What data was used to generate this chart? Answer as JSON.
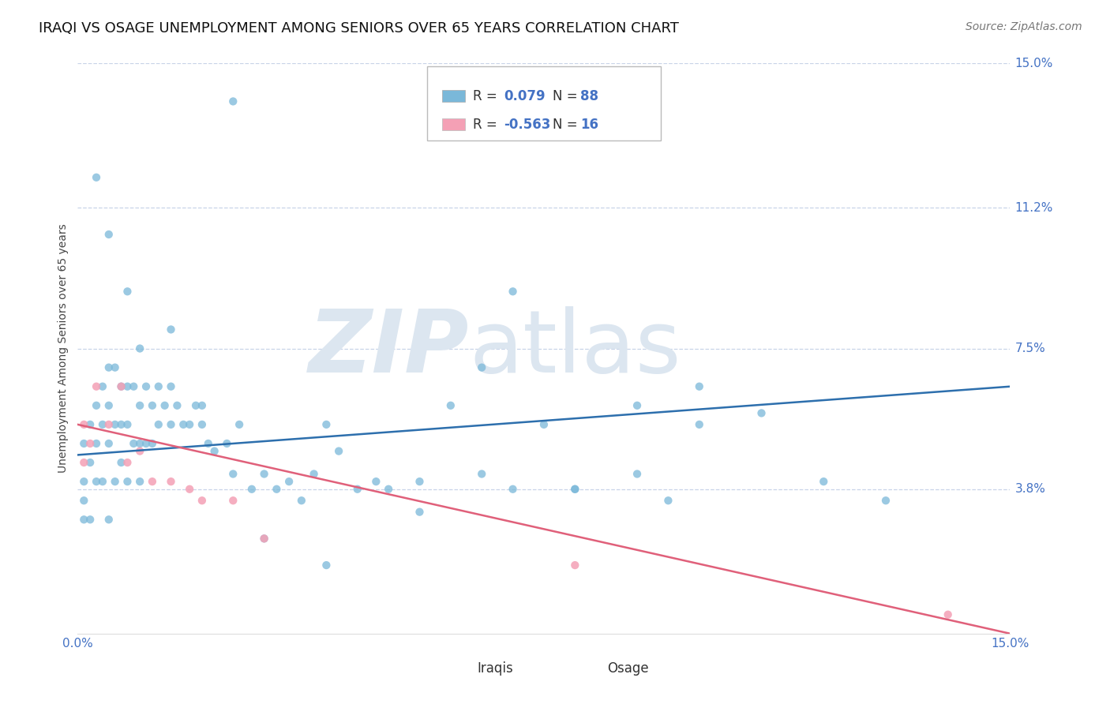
{
  "title": "IRAQI VS OSAGE UNEMPLOYMENT AMONG SENIORS OVER 65 YEARS CORRELATION CHART",
  "source": "Source: ZipAtlas.com",
  "ylabel": "Unemployment Among Seniors over 65 years",
  "x_min": 0.0,
  "x_max": 0.15,
  "y_min": 0.0,
  "y_max": 0.15,
  "ytick_vals": [
    0.038,
    0.075,
    0.112,
    0.15
  ],
  "ytick_labels": [
    "3.8%",
    "7.5%",
    "11.2%",
    "15.0%"
  ],
  "xtick_vals": [
    0.0,
    0.15
  ],
  "xtick_labels": [
    "0.0%",
    "15.0%"
  ],
  "iraqis_color": "#7ab8d9",
  "osage_color": "#f4a0b5",
  "trend_iraqi_color": "#2d6fad",
  "trend_osage_color": "#e0607a",
  "background_color": "#ffffff",
  "watermark_color": "#dce6f0",
  "tick_label_color": "#4472c4",
  "grid_color": "#c8d4e8",
  "R_val_color": "#4472c4",
  "N_val_color": "#4472c4",
  "iraqi_x": [
    0.001,
    0.001,
    0.001,
    0.001,
    0.002,
    0.002,
    0.002,
    0.003,
    0.003,
    0.003,
    0.004,
    0.004,
    0.004,
    0.005,
    0.005,
    0.005,
    0.005,
    0.006,
    0.006,
    0.006,
    0.007,
    0.007,
    0.007,
    0.008,
    0.008,
    0.008,
    0.009,
    0.009,
    0.01,
    0.01,
    0.01,
    0.011,
    0.011,
    0.012,
    0.012,
    0.013,
    0.013,
    0.014,
    0.015,
    0.015,
    0.016,
    0.017,
    0.018,
    0.019,
    0.02,
    0.021,
    0.022,
    0.024,
    0.025,
    0.026,
    0.028,
    0.03,
    0.032,
    0.034,
    0.036,
    0.038,
    0.04,
    0.042,
    0.045,
    0.048,
    0.05,
    0.055,
    0.06,
    0.065,
    0.07,
    0.075,
    0.08,
    0.09,
    0.095,
    0.1,
    0.11,
    0.12,
    0.13,
    0.003,
    0.005,
    0.008,
    0.01,
    0.015,
    0.02,
    0.025,
    0.03,
    0.04,
    0.055,
    0.065,
    0.07,
    0.08,
    0.09,
    0.1
  ],
  "iraqi_y": [
    0.05,
    0.04,
    0.035,
    0.03,
    0.055,
    0.045,
    0.03,
    0.06,
    0.05,
    0.04,
    0.065,
    0.055,
    0.04,
    0.07,
    0.06,
    0.05,
    0.03,
    0.07,
    0.055,
    0.04,
    0.065,
    0.055,
    0.045,
    0.065,
    0.055,
    0.04,
    0.065,
    0.05,
    0.06,
    0.05,
    0.04,
    0.065,
    0.05,
    0.06,
    0.05,
    0.065,
    0.055,
    0.06,
    0.065,
    0.055,
    0.06,
    0.055,
    0.055,
    0.06,
    0.055,
    0.05,
    0.048,
    0.05,
    0.14,
    0.055,
    0.038,
    0.042,
    0.038,
    0.04,
    0.035,
    0.042,
    0.055,
    0.048,
    0.038,
    0.04,
    0.038,
    0.04,
    0.06,
    0.042,
    0.038,
    0.055,
    0.038,
    0.06,
    0.035,
    0.065,
    0.058,
    0.04,
    0.035,
    0.12,
    0.105,
    0.09,
    0.075,
    0.08,
    0.06,
    0.042,
    0.025,
    0.018,
    0.032,
    0.07,
    0.09,
    0.038,
    0.042,
    0.055
  ],
  "osage_x": [
    0.001,
    0.001,
    0.002,
    0.003,
    0.005,
    0.007,
    0.008,
    0.01,
    0.012,
    0.015,
    0.018,
    0.02,
    0.025,
    0.03,
    0.08,
    0.14
  ],
  "osage_y": [
    0.055,
    0.045,
    0.05,
    0.065,
    0.055,
    0.065,
    0.045,
    0.048,
    0.04,
    0.04,
    0.038,
    0.035,
    0.035,
    0.025,
    0.018,
    0.005
  ],
  "iraqi_trend_x0": 0.0,
  "iraqi_trend_y0": 0.047,
  "iraqi_trend_x1": 0.15,
  "iraqi_trend_y1": 0.065,
  "osage_trend_x0": 0.0,
  "osage_trend_y0": 0.055,
  "osage_trend_x1": 0.15,
  "osage_trend_y1": 0.0
}
